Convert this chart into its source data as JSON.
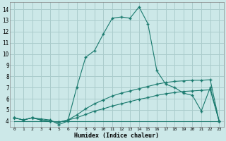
{
  "title": "",
  "xlabel": "Humidex (Indice chaleur)",
  "background_color": "#cce8e8",
  "grid_color": "#aacccc",
  "line_color": "#1a7a6e",
  "xlim": [
    -0.5,
    23.5
  ],
  "ylim": [
    3.5,
    14.6
  ],
  "xticks": [
    0,
    1,
    2,
    3,
    4,
    5,
    6,
    7,
    8,
    9,
    10,
    11,
    12,
    13,
    14,
    15,
    16,
    17,
    18,
    19,
    20,
    21,
    22,
    23
  ],
  "yticks": [
    4,
    5,
    6,
    7,
    8,
    9,
    10,
    11,
    12,
    13,
    14
  ],
  "series1_x": [
    0,
    1,
    2,
    3,
    4,
    5,
    6,
    7,
    8,
    9,
    10,
    11,
    12,
    13,
    14,
    15,
    16,
    17,
    18,
    19,
    20,
    21,
    22,
    23
  ],
  "series1_y": [
    4.3,
    4.1,
    4.3,
    4.2,
    4.1,
    3.7,
    4.0,
    7.0,
    9.7,
    10.3,
    11.8,
    13.2,
    13.3,
    13.2,
    14.2,
    12.7,
    8.5,
    7.3,
    7.0,
    6.5,
    6.3,
    4.9,
    7.0,
    4.0
  ],
  "series2_x": [
    0,
    1,
    2,
    3,
    4,
    5,
    6,
    7,
    8,
    9,
    10,
    11,
    12,
    13,
    14,
    15,
    16,
    17,
    18,
    19,
    20,
    21,
    22,
    23
  ],
  "series2_y": [
    4.3,
    4.1,
    4.3,
    4.1,
    4.0,
    3.9,
    4.1,
    4.55,
    5.1,
    5.55,
    5.9,
    6.25,
    6.5,
    6.7,
    6.9,
    7.1,
    7.3,
    7.45,
    7.55,
    7.6,
    7.65,
    7.65,
    7.7,
    4.0
  ],
  "series3_x": [
    0,
    1,
    2,
    3,
    4,
    5,
    6,
    7,
    8,
    9,
    10,
    11,
    12,
    13,
    14,
    15,
    16,
    17,
    18,
    19,
    20,
    21,
    22,
    23
  ],
  "series3_y": [
    4.3,
    4.1,
    4.3,
    4.1,
    4.0,
    3.9,
    4.1,
    4.3,
    4.6,
    4.9,
    5.1,
    5.35,
    5.55,
    5.75,
    5.95,
    6.1,
    6.3,
    6.45,
    6.55,
    6.65,
    6.7,
    6.75,
    6.8,
    4.0
  ],
  "series4_x": [
    0,
    23
  ],
  "series4_y": [
    4.0,
    4.0
  ]
}
